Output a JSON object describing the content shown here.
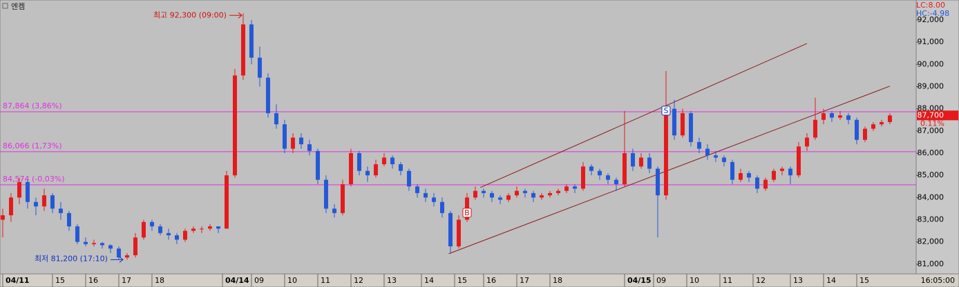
{
  "chart_data": {
    "type": "candlestick",
    "title": "엔켐",
    "up_color": "#e41a1c",
    "down_color": "#2458d6",
    "ylim": [
      80560,
      92900
    ],
    "yticks": [
      {
        "value": 81000,
        "label": "81,000"
      },
      {
        "value": 82000,
        "label": "82,000"
      },
      {
        "value": 83000,
        "label": "83,000"
      },
      {
        "value": 84000,
        "label": "84,000"
      },
      {
        "value": 85000,
        "label": "85,000"
      },
      {
        "value": 86000,
        "label": "86,000"
      },
      {
        "value": 87000,
        "label": "87,000"
      },
      {
        "value": 88000,
        "label": "88,000"
      },
      {
        "value": 89000,
        "label": "89,000"
      },
      {
        "value": 90000,
        "label": "90,000"
      },
      {
        "value": 91000,
        "label": "91,000"
      },
      {
        "value": 92000,
        "label": "92,000"
      }
    ],
    "xlim": [
      -0.33,
      110.17
    ],
    "xticks": [
      {
        "value": 0,
        "label": "04/11"
      },
      {
        "value": 6,
        "label": "15"
      },
      {
        "value": 10,
        "label": "16"
      },
      {
        "value": 14,
        "label": "17"
      },
      {
        "value": 18,
        "label": "18"
      },
      {
        "value": 26.5,
        "label": "04/14"
      },
      {
        "value": 30,
        "label": "09"
      },
      {
        "value": 34,
        "label": "10"
      },
      {
        "value": 38,
        "label": "11"
      },
      {
        "value": 42,
        "label": "12"
      },
      {
        "value": 46,
        "label": "13"
      },
      {
        "value": 50.5,
        "label": "14"
      },
      {
        "value": 54.5,
        "label": "15"
      },
      {
        "value": 58,
        "label": "16"
      },
      {
        "value": 62,
        "label": "17"
      },
      {
        "value": 66,
        "label": "18"
      },
      {
        "value": 75,
        "label": "04/15"
      },
      {
        "value": 78.5,
        "label": "09"
      },
      {
        "value": 82.5,
        "label": "10"
      },
      {
        "value": 86.5,
        "label": "11"
      },
      {
        "value": 90.5,
        "label": "12"
      },
      {
        "value": 95,
        "label": "13"
      },
      {
        "value": 99,
        "label": "14"
      },
      {
        "value": 103,
        "label": "15"
      }
    ],
    "time_label": "16:05:00",
    "indicators": [
      {
        "text": "LC:8.00",
        "color": "#e41a1c"
      },
      {
        "text": "HC:-4.98",
        "color": "#2458d6"
      }
    ],
    "levels": [
      {
        "value": 87864,
        "label": "87,864 (3,86%)"
      },
      {
        "value": 86066,
        "label": "86,066 (1,73%)"
      },
      {
        "value": 84574,
        "label": "84,574 (-0,03%)"
      }
    ],
    "level_color": "#e030e0",
    "last": {
      "value": 87700,
      "label": "87,700",
      "change": "0.11%"
    },
    "high_note": {
      "text": "최고 92,300 (09:00)",
      "value": 92300,
      "index": 29
    },
    "low_note": {
      "text": "최저 81,200 (17:10)",
      "value": 81200,
      "index": 14.5
    },
    "trendlines": [
      {
        "start": [
          57.6,
          84450
        ],
        "end": [
          97,
          90940
        ]
      },
      {
        "start": [
          53.8,
          81470
        ],
        "end": [
          107,
          89020
        ]
      }
    ],
    "signals": [
      {
        "label": "B",
        "index": 56,
        "value": 83300
      },
      {
        "label": "S",
        "index": 80,
        "value": 87900
      }
    ],
    "ohlc": [
      [
        83000,
        83500,
        82200,
        83200
      ],
      [
        83200,
        84200,
        82900,
        84000
      ],
      [
        84000,
        84900,
        83700,
        84700
      ],
      [
        84700,
        84800,
        83500,
        83800
      ],
      [
        83800,
        84000,
        83200,
        83600
      ],
      [
        83600,
        84400,
        83400,
        84100
      ],
      [
        84100,
        84200,
        83300,
        83500
      ],
      [
        83500,
        83800,
        83000,
        83300
      ],
      [
        83300,
        83400,
        82500,
        82700
      ],
      [
        82700,
        82800,
        81900,
        82000
      ],
      [
        82000,
        82200,
        81800,
        81900
      ],
      [
        81900,
        82100,
        81800,
        81950
      ],
      [
        81950,
        82000,
        81700,
        81850
      ],
      [
        81850,
        81900,
        81500,
        81700
      ],
      [
        81700,
        81800,
        81200,
        81300
      ],
      [
        81300,
        81500,
        81200,
        81400
      ],
      [
        81400,
        82400,
        81300,
        82200
      ],
      [
        82200,
        83000,
        82100,
        82900
      ],
      [
        82900,
        83000,
        82500,
        82700
      ],
      [
        82700,
        82800,
        82300,
        82400
      ],
      [
        82400,
        82600,
        82100,
        82300
      ],
      [
        82300,
        82400,
        81900,
        82100
      ],
      [
        82100,
        82600,
        82000,
        82500
      ],
      [
        82500,
        82700,
        82400,
        82600
      ],
      [
        82600,
        82700,
        82400,
        82600
      ],
      [
        82600,
        82800,
        82500,
        82700
      ],
      [
        82700,
        82700,
        82400,
        82600
      ],
      [
        82600,
        85200,
        82600,
        85000
      ],
      [
        85000,
        89800,
        84900,
        89500
      ],
      [
        89500,
        92300,
        89300,
        91800
      ],
      [
        91800,
        92000,
        90000,
        90300
      ],
      [
        90300,
        90800,
        89000,
        89400
      ],
      [
        89400,
        89600,
        87600,
        87800
      ],
      [
        87800,
        88200,
        87100,
        87300
      ],
      [
        87300,
        87500,
        86000,
        86200
      ],
      [
        86200,
        86900,
        86000,
        86700
      ],
      [
        86700,
        86900,
        86200,
        86400
      ],
      [
        86400,
        86600,
        85900,
        86100
      ],
      [
        86100,
        86200,
        84600,
        84800
      ],
      [
        84800,
        85000,
        83300,
        83500
      ],
      [
        83500,
        83700,
        83100,
        83300
      ],
      [
        83300,
        84800,
        83200,
        84600
      ],
      [
        84600,
        86200,
        84500,
        86000
      ],
      [
        86000,
        86100,
        85000,
        85200
      ],
      [
        85200,
        85400,
        84700,
        85000
      ],
      [
        85000,
        85700,
        84900,
        85500
      ],
      [
        85500,
        86000,
        85400,
        85800
      ],
      [
        85800,
        85900,
        85300,
        85500
      ],
      [
        85500,
        85600,
        85000,
        85200
      ],
      [
        85200,
        85300,
        84300,
        84500
      ],
      [
        84500,
        84600,
        84000,
        84200
      ],
      [
        84200,
        84400,
        83800,
        84000
      ],
      [
        84000,
        84200,
        83600,
        83800
      ],
      [
        83800,
        84000,
        83100,
        83300
      ],
      [
        83300,
        83400,
        81500,
        81800
      ],
      [
        81800,
        83200,
        81700,
        83000
      ],
      [
        83000,
        84200,
        82900,
        84000
      ],
      [
        84000,
        84500,
        83900,
        84300
      ],
      [
        84300,
        84400,
        84000,
        84200
      ],
      [
        84200,
        84300,
        83800,
        84000
      ],
      [
        84000,
        84100,
        83700,
        83900
      ],
      [
        83900,
        84200,
        83800,
        84100
      ],
      [
        84100,
        84500,
        84000,
        84300
      ],
      [
        84300,
        84400,
        84000,
        84200
      ],
      [
        84200,
        84300,
        83800,
        84000
      ],
      [
        84000,
        84200,
        83900,
        84100
      ],
      [
        84100,
        84300,
        84000,
        84200
      ],
      [
        84200,
        84400,
        84100,
        84300
      ],
      [
        84300,
        84600,
        84200,
        84500
      ],
      [
        84500,
        84600,
        84200,
        84400
      ],
      [
        84400,
        85600,
        84300,
        85400
      ],
      [
        85400,
        85500,
        85000,
        85200
      ],
      [
        85200,
        85300,
        84800,
        85000
      ],
      [
        85000,
        85100,
        84600,
        84800
      ],
      [
        84800,
        84900,
        84300,
        84600
      ],
      [
        84600,
        87900,
        84500,
        86000
      ],
      [
        86000,
        86200,
        85200,
        85400
      ],
      [
        85400,
        86000,
        85300,
        85800
      ],
      [
        85800,
        86000,
        85100,
        85300
      ],
      [
        85300,
        85400,
        82200,
        84100
      ],
      [
        84100,
        89700,
        83900,
        88000
      ],
      [
        88000,
        88400,
        86600,
        86800
      ],
      [
        86800,
        88000,
        86700,
        87800
      ],
      [
        87800,
        87900,
        86300,
        86500
      ],
      [
        86500,
        86700,
        86000,
        86200
      ],
      [
        86200,
        86400,
        85700,
        85900
      ],
      [
        85900,
        86100,
        85600,
        85800
      ],
      [
        85800,
        85900,
        85400,
        85600
      ],
      [
        85600,
        85700,
        84600,
        84800
      ],
      [
        84800,
        85300,
        84700,
        85100
      ],
      [
        85100,
        85200,
        84700,
        84900
      ],
      [
        84900,
        85000,
        84200,
        84400
      ],
      [
        84400,
        84900,
        84300,
        84800
      ],
      [
        84800,
        85300,
        84700,
        85200
      ],
      [
        85200,
        85400,
        85000,
        85300
      ],
      [
        85300,
        85400,
        84600,
        85000
      ],
      [
        85000,
        86500,
        84900,
        86300
      ],
      [
        86300,
        86900,
        86100,
        86700
      ],
      [
        86700,
        88500,
        86600,
        87500
      ],
      [
        87500,
        88000,
        87300,
        87800
      ],
      [
        87800,
        87900,
        87400,
        87600
      ],
      [
        87600,
        87900,
        87500,
        87700
      ],
      [
        87700,
        87800,
        87300,
        87500
      ],
      [
        87500,
        87600,
        86400,
        86600
      ],
      [
        86600,
        87200,
        86500,
        87100
      ],
      [
        87100,
        87400,
        87000,
        87300
      ],
      [
        87300,
        87500,
        87200,
        87400
      ],
      [
        87400,
        87800,
        87300,
        87700
      ]
    ]
  }
}
